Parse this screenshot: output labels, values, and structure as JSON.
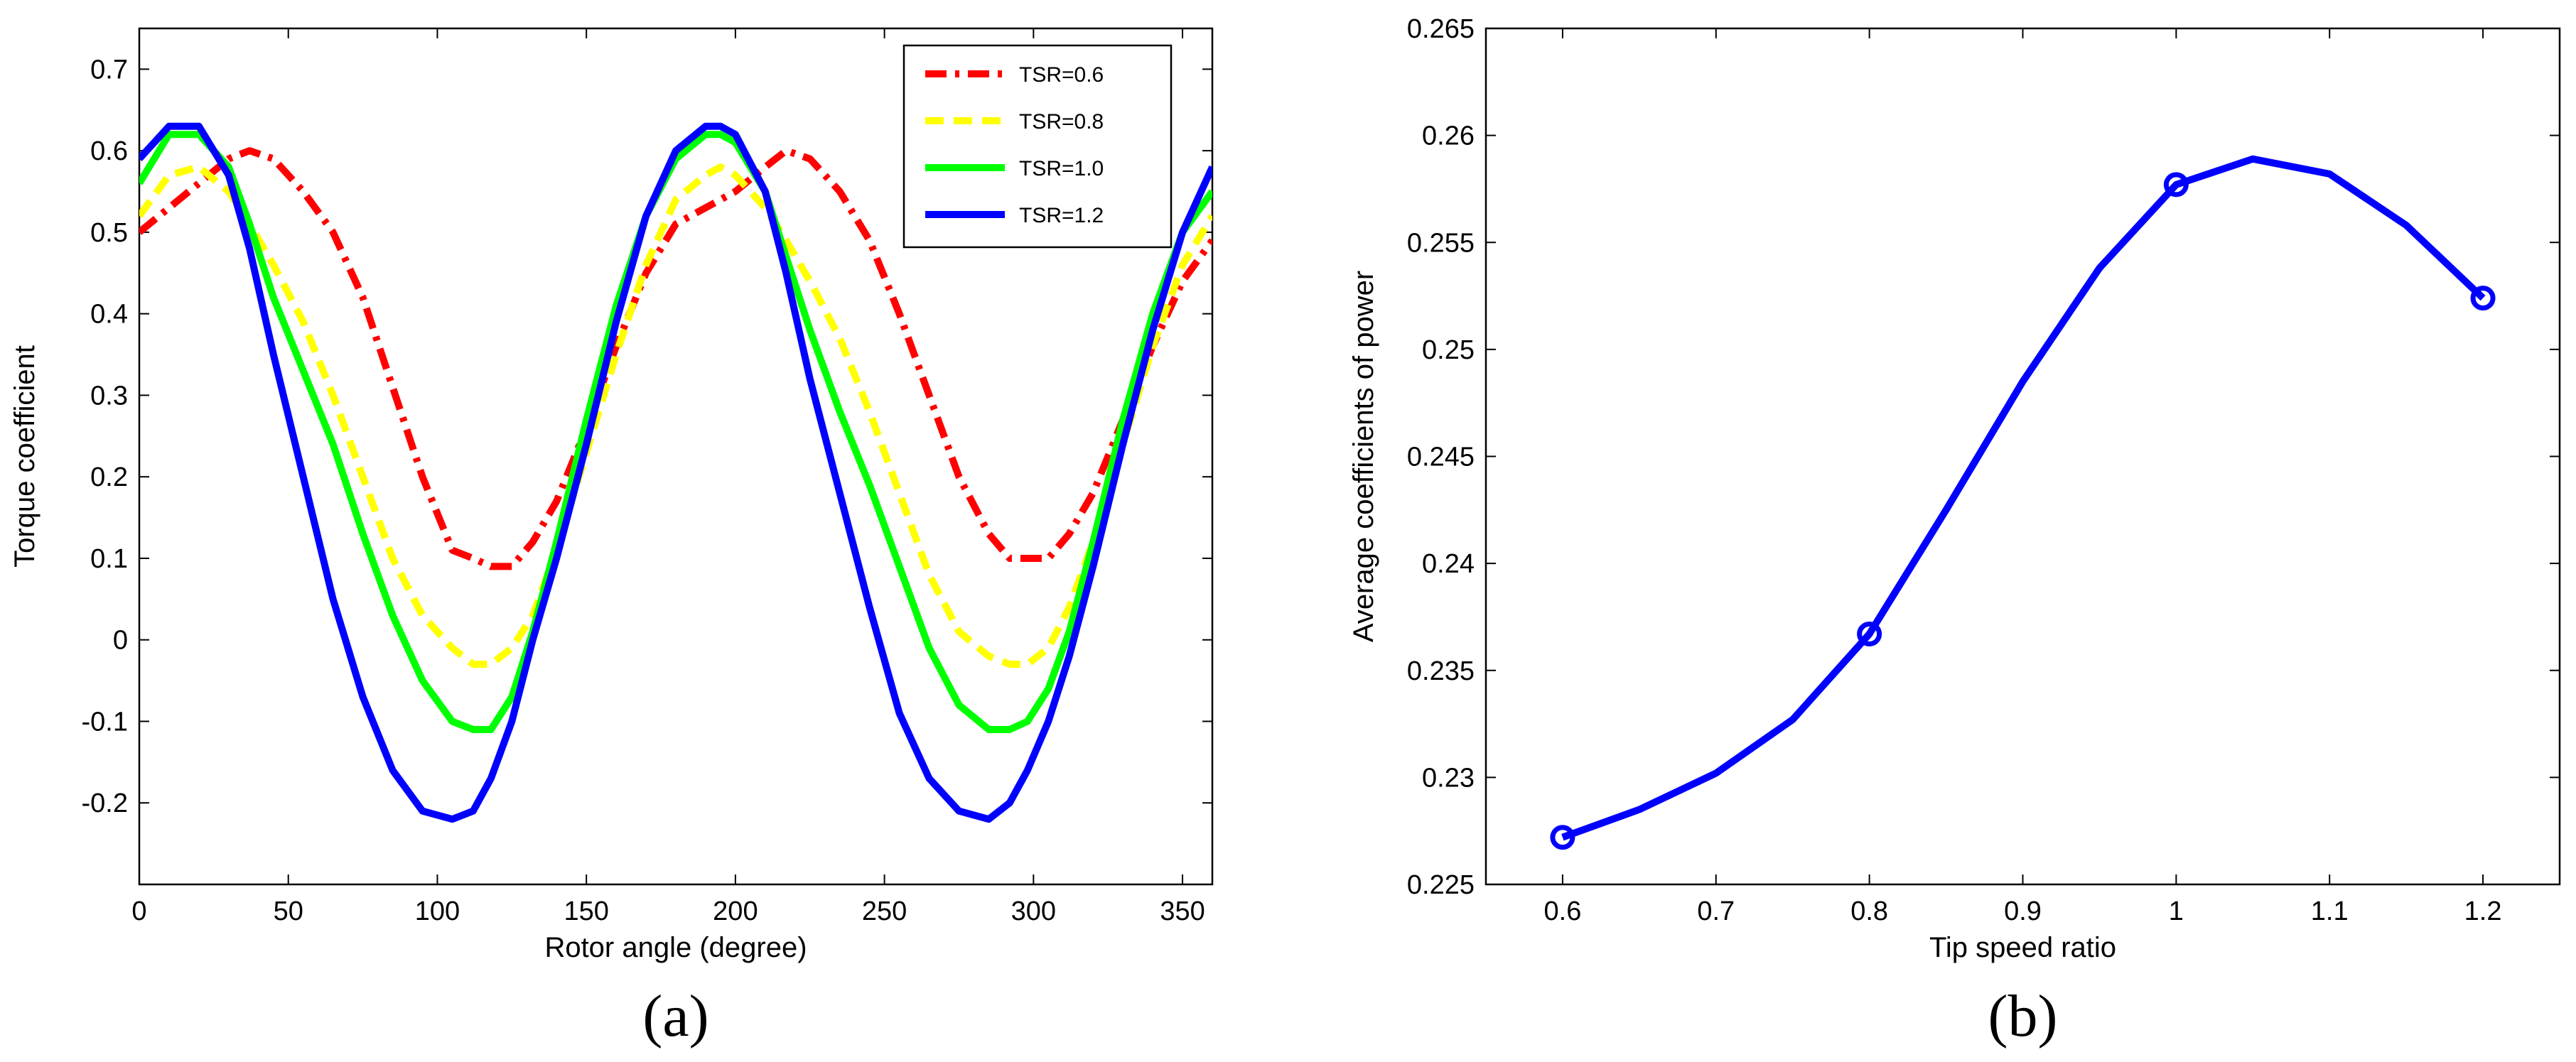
{
  "chart_data": [
    {
      "type": "line",
      "caption": "(a)",
      "xlabel": "Rotor angle (degree)",
      "ylabel": "Torque coefficient",
      "xlim": [
        0,
        360
      ],
      "ylim": [
        -0.3,
        0.75
      ],
      "xticks": [
        0,
        50,
        100,
        150,
        200,
        250,
        300,
        350
      ],
      "yticks": [
        -0.2,
        -0.1,
        0,
        0.1,
        0.2,
        0.3,
        0.4,
        0.5,
        0.6,
        0.7
      ],
      "legend_position": "top-right",
      "x": [
        0,
        10,
        20,
        30,
        37,
        45,
        55,
        65,
        75,
        85,
        95,
        105,
        112,
        118,
        125,
        132,
        140,
        150,
        160,
        170,
        180,
        190,
        195,
        200,
        210,
        217,
        225,
        235,
        245,
        255,
        265,
        275,
        285,
        292,
        298,
        305,
        312,
        320,
        330,
        340,
        350,
        360
      ],
      "series": [
        {
          "name": "TSR=0.6",
          "color": "#ff0000",
          "style": "dashdot",
          "values": [
            0.5,
            0.53,
            0.56,
            0.59,
            0.6,
            0.59,
            0.55,
            0.5,
            0.42,
            0.31,
            0.2,
            0.11,
            0.1,
            0.09,
            0.09,
            0.12,
            0.17,
            0.26,
            0.36,
            0.45,
            0.51,
            0.53,
            0.54,
            0.55,
            0.58,
            0.6,
            0.59,
            0.55,
            0.49,
            0.4,
            0.3,
            0.2,
            0.13,
            0.1,
            0.1,
            0.1,
            0.13,
            0.18,
            0.27,
            0.36,
            0.44,
            0.49
          ]
        },
        {
          "name": "TSR=0.8",
          "color": "#ffff00",
          "style": "dashed",
          "values": [
            0.52,
            0.57,
            0.58,
            0.55,
            0.51,
            0.46,
            0.39,
            0.3,
            0.2,
            0.1,
            0.03,
            -0.01,
            -0.03,
            -0.03,
            -0.01,
            0.03,
            0.11,
            0.23,
            0.35,
            0.46,
            0.54,
            0.57,
            0.58,
            0.57,
            0.53,
            0.49,
            0.44,
            0.37,
            0.28,
            0.18,
            0.08,
            0.01,
            -0.02,
            -0.03,
            -0.03,
            -0.01,
            0.04,
            0.12,
            0.24,
            0.36,
            0.46,
            0.52
          ]
        },
        {
          "name": "TSR=1.0",
          "color": "#00ff00",
          "style": "solid",
          "values": [
            0.56,
            0.62,
            0.62,
            0.58,
            0.51,
            0.42,
            0.33,
            0.24,
            0.13,
            0.03,
            -0.05,
            -0.1,
            -0.11,
            -0.11,
            -0.07,
            0.01,
            0.12,
            0.27,
            0.41,
            0.52,
            0.59,
            0.62,
            0.62,
            0.61,
            0.55,
            0.47,
            0.38,
            0.28,
            0.19,
            0.09,
            -0.01,
            -0.08,
            -0.11,
            -0.11,
            -0.1,
            -0.06,
            0.01,
            0.12,
            0.27,
            0.4,
            0.5,
            0.55
          ]
        },
        {
          "name": "TSR=1.2",
          "color": "#0000ff",
          "style": "solid",
          "values": [
            0.59,
            0.63,
            0.63,
            0.57,
            0.48,
            0.35,
            0.2,
            0.05,
            -0.07,
            -0.16,
            -0.21,
            -0.22,
            -0.21,
            -0.17,
            -0.1,
            0.0,
            0.1,
            0.24,
            0.39,
            0.52,
            0.6,
            0.63,
            0.63,
            0.62,
            0.55,
            0.45,
            0.32,
            0.18,
            0.04,
            -0.09,
            -0.17,
            -0.21,
            -0.22,
            -0.2,
            -0.16,
            -0.1,
            -0.02,
            0.09,
            0.24,
            0.38,
            0.5,
            0.58
          ]
        }
      ]
    },
    {
      "type": "line",
      "caption": "(b)",
      "xlabel": "Tip speed ratio",
      "ylabel": "Average coefficients of power",
      "xlim": [
        0.55,
        1.25
      ],
      "ylim": [
        0.225,
        0.265
      ],
      "xticks": [
        0.6,
        0.7,
        0.8,
        0.9,
        1,
        1.1,
        1.2
      ],
      "yticks": [
        0.225,
        0.23,
        0.235,
        0.24,
        0.245,
        0.25,
        0.255,
        0.26,
        0.265
      ],
      "color": "#0000ff",
      "x": [
        0.6,
        0.65,
        0.7,
        0.75,
        0.8,
        0.85,
        0.9,
        0.95,
        1.0,
        1.05,
        1.1,
        1.15,
        1.2
      ],
      "values": [
        0.2272,
        0.2285,
        0.2302,
        0.2327,
        0.2367,
        0.2425,
        0.2485,
        0.2538,
        0.2577,
        0.2589,
        0.2582,
        0.2558,
        0.2524
      ],
      "markers": {
        "x": [
          0.6,
          0.8,
          1.0,
          1.2
        ],
        "y": [
          0.2272,
          0.2367,
          0.2577,
          0.2524
        ]
      }
    }
  ]
}
